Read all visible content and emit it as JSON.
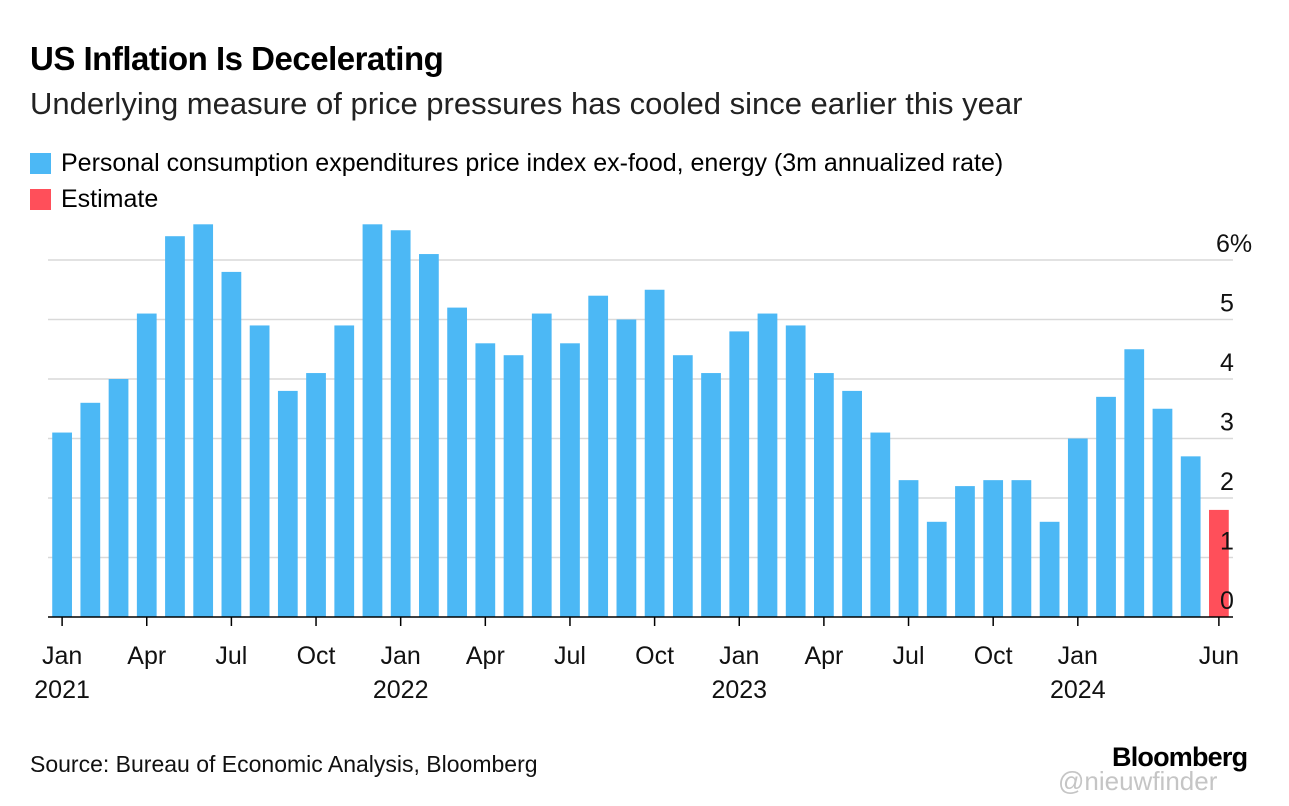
{
  "title": "US Inflation Is Decelerating",
  "subtitle": "Underlying measure of price pressures has cooled since earlier this year",
  "legend": [
    {
      "label": "Personal consumption expenditures price index ex-food, energy (3m annualized rate)",
      "color": "#4cb8f5"
    },
    {
      "label": "Estimate",
      "color": "#ff4f5a"
    }
  ],
  "source": "Source: Bureau of Economic Analysis, Bloomberg",
  "brand": "Bloomberg",
  "watermark": "@nieuwfinder",
  "chart_data": {
    "type": "bar",
    "title": "US Inflation Is Decelerating",
    "xlabel": "",
    "ylabel": "",
    "ylim": [
      0,
      6.5
    ],
    "grid": true,
    "categories": [
      "2021-01",
      "2021-02",
      "2021-03",
      "2021-04",
      "2021-05",
      "2021-06",
      "2021-07",
      "2021-08",
      "2021-09",
      "2021-10",
      "2021-11",
      "2021-12",
      "2022-01",
      "2022-02",
      "2022-03",
      "2022-04",
      "2022-05",
      "2022-06",
      "2022-07",
      "2022-08",
      "2022-09",
      "2022-10",
      "2022-11",
      "2022-12",
      "2023-01",
      "2023-02",
      "2023-03",
      "2023-04",
      "2023-05",
      "2023-06",
      "2023-07",
      "2023-08",
      "2023-09",
      "2023-10",
      "2023-11",
      "2023-12",
      "2024-01",
      "2024-02",
      "2024-03",
      "2024-04",
      "2024-05",
      "2024-06"
    ],
    "series": [
      {
        "name": "Personal consumption expenditures price index ex-food, energy (3m annualized rate)",
        "color": "#4cb8f5",
        "values": [
          3.1,
          3.6,
          4.0,
          5.1,
          6.4,
          6.6,
          5.8,
          4.9,
          3.8,
          4.1,
          4.9,
          6.6,
          6.5,
          6.1,
          5.2,
          4.6,
          4.4,
          5.1,
          4.6,
          5.4,
          5.0,
          5.5,
          4.4,
          4.1,
          4.8,
          5.1,
          4.9,
          4.1,
          3.8,
          3.1,
          2.3,
          1.6,
          2.2,
          2.3,
          2.3,
          1.6,
          3.0,
          3.7,
          4.5,
          3.5,
          2.7,
          null
        ]
      },
      {
        "name": "Estimate",
        "color": "#ff4f5a",
        "values": [
          null,
          null,
          null,
          null,
          null,
          null,
          null,
          null,
          null,
          null,
          null,
          null,
          null,
          null,
          null,
          null,
          null,
          null,
          null,
          null,
          null,
          null,
          null,
          null,
          null,
          null,
          null,
          null,
          null,
          null,
          null,
          null,
          null,
          null,
          null,
          null,
          null,
          null,
          null,
          null,
          null,
          1.8
        ]
      }
    ],
    "y_ticks": [
      {
        "value": 0,
        "label": "0"
      },
      {
        "value": 1,
        "label": "1"
      },
      {
        "value": 2,
        "label": "2"
      },
      {
        "value": 3,
        "label": "3"
      },
      {
        "value": 4,
        "label": "4"
      },
      {
        "value": 5,
        "label": "5"
      },
      {
        "value": 6,
        "label": "6%"
      }
    ],
    "x_ticks": [
      {
        "index": 0,
        "label": "Jan",
        "year": "2021"
      },
      {
        "index": 3,
        "label": "Apr",
        "year": ""
      },
      {
        "index": 6,
        "label": "Jul",
        "year": ""
      },
      {
        "index": 9,
        "label": "Oct",
        "year": ""
      },
      {
        "index": 12,
        "label": "Jan",
        "year": "2022"
      },
      {
        "index": 15,
        "label": "Apr",
        "year": ""
      },
      {
        "index": 18,
        "label": "Jul",
        "year": ""
      },
      {
        "index": 21,
        "label": "Oct",
        "year": ""
      },
      {
        "index": 24,
        "label": "Jan",
        "year": "2023"
      },
      {
        "index": 27,
        "label": "Apr",
        "year": ""
      },
      {
        "index": 30,
        "label": "Jul",
        "year": ""
      },
      {
        "index": 33,
        "label": "Oct",
        "year": ""
      },
      {
        "index": 36,
        "label": "Jan",
        "year": "2024"
      },
      {
        "index": 41,
        "label": "Jun",
        "year": ""
      }
    ]
  }
}
